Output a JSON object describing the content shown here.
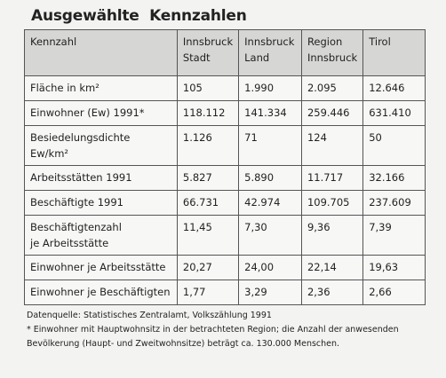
{
  "title": "Ausgewählte  Kennzahlen",
  "table": {
    "header": [
      "Kennzahl",
      "Innsbruck\nStadt",
      "Innsbruck\nLand",
      "Region\nInnsbruck",
      "Tirol"
    ],
    "rows": [
      [
        "Fläche in km²",
        "105",
        "1.990",
        "2.095",
        "12.646"
      ],
      [
        "Einwohner (Ew) 1991*",
        "118.112",
        "141.334",
        "259.446",
        "631.410"
      ],
      [
        "Besiedelungsdichte Ew/km²",
        "1.126",
        "71",
        "124",
        "50"
      ],
      [
        "Arbeitsstätten 1991",
        "5.827",
        "5.890",
        "11.717",
        "32.166"
      ],
      [
        "Beschäftigte 1991",
        "66.731",
        "42.974",
        "109.705",
        "237.609"
      ],
      [
        "Beschäftigtenzahl\nje Arbeitsstätte",
        "11,45",
        "7,30",
        "9,36",
        "7,39"
      ],
      [
        "Einwohner je Arbeitsstätte",
        "20,27",
        "24,00",
        "22,14",
        "19,63"
      ],
      [
        "Einwohner je Beschäftigten",
        "1,77",
        "3,29",
        "2,36",
        "2,66"
      ]
    ]
  },
  "notes": [
    "Datenquelle: Statistisches Zentralamt, Volkszählung 1991",
    "* Einwohner mit Hauptwohnsitz in der betrachteten Region; die Anzahl der anwesenden\nBevölkerung (Haupt- und Zweitwohnsitze) beträgt ca. 130.000 Menschen."
  ]
}
